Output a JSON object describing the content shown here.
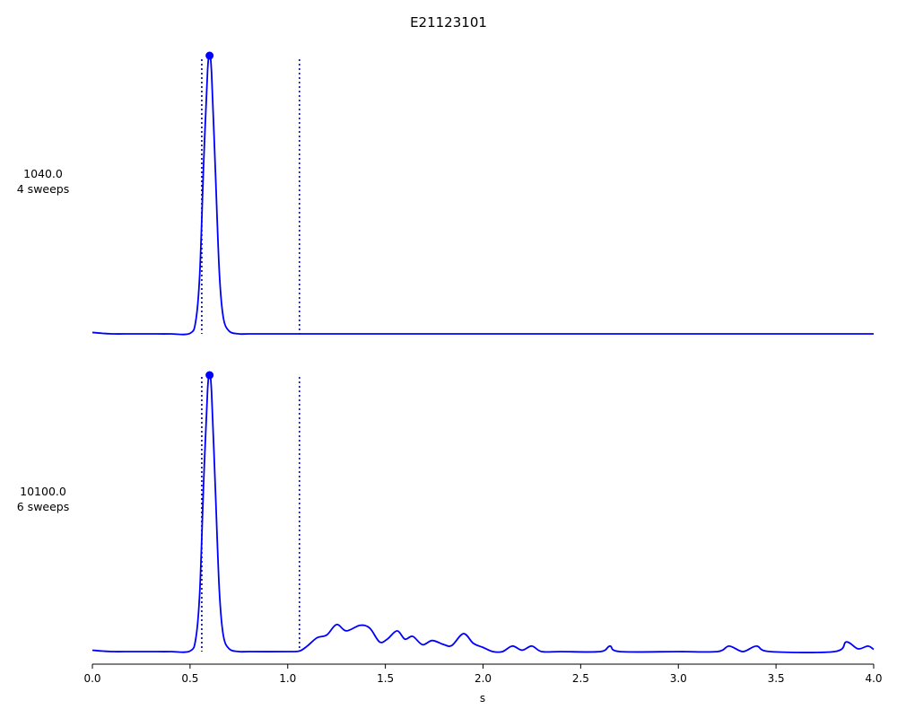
{
  "chart_data": {
    "type": "line",
    "title": "E21123101",
    "xlabel": "s",
    "xlim": [
      0.0,
      4.0
    ],
    "xticks": [
      "0.0",
      "0.5",
      "1.0",
      "1.5",
      "2.0",
      "2.5",
      "3.0",
      "3.5",
      "4.0"
    ],
    "color": "#0000ff",
    "panels": [
      {
        "label_line1": "1040.0",
        "label_line2": "4 sweeps",
        "ylim": [
          0,
          1
        ],
        "markers": [
          0.56,
          1.06
        ],
        "peak": {
          "x": 0.6,
          "y": 1.0
        },
        "x": [
          0.0,
          0.05,
          0.1,
          0.2,
          0.3,
          0.4,
          0.5,
          0.53,
          0.55,
          0.57,
          0.59,
          0.6,
          0.61,
          0.63,
          0.65,
          0.67,
          0.7,
          0.75,
          0.8,
          1.0,
          1.5,
          2.0,
          2.5,
          3.0,
          3.5,
          4.0
        ],
        "y": [
          0.005,
          0.002,
          0.0,
          0.0,
          0.0,
          0.0,
          0.002,
          0.05,
          0.22,
          0.62,
          0.95,
          1.0,
          0.94,
          0.58,
          0.22,
          0.06,
          0.01,
          0.0,
          0.0,
          0.0,
          0.0,
          0.0,
          0.0,
          0.0,
          0.0,
          0.0
        ]
      },
      {
        "label_line1": "10100.0",
        "label_line2": "6 sweeps",
        "ylim": [
          0,
          1
        ],
        "markers": [
          0.56,
          1.06
        ],
        "peak": {
          "x": 0.6,
          "y": 1.0
        },
        "x": [
          0.0,
          0.05,
          0.1,
          0.2,
          0.3,
          0.4,
          0.5,
          0.53,
          0.55,
          0.57,
          0.59,
          0.6,
          0.61,
          0.63,
          0.65,
          0.67,
          0.7,
          0.75,
          0.8,
          1.0,
          1.06,
          1.1,
          1.15,
          1.2,
          1.25,
          1.3,
          1.37,
          1.42,
          1.47,
          1.51,
          1.56,
          1.6,
          1.64,
          1.69,
          1.74,
          1.8,
          1.84,
          1.9,
          1.95,
          2.0,
          2.05,
          2.1,
          2.15,
          2.2,
          2.25,
          2.3,
          2.4,
          2.6,
          2.65,
          2.7,
          3.0,
          3.2,
          3.26,
          3.33,
          3.4,
          3.47,
          3.8,
          3.86,
          3.92,
          3.97,
          4.0
        ],
        "y": [
          0.005,
          0.002,
          0.0,
          0.0,
          0.0,
          0.0,
          0.002,
          0.05,
          0.22,
          0.62,
          0.95,
          1.0,
          0.94,
          0.58,
          0.22,
          0.06,
          0.01,
          0.0,
          0.0,
          0.0,
          0.002,
          0.02,
          0.05,
          0.06,
          0.098,
          0.075,
          0.095,
          0.085,
          0.035,
          0.045,
          0.075,
          0.045,
          0.055,
          0.025,
          0.04,
          0.025,
          0.022,
          0.065,
          0.03,
          0.015,
          0.0,
          0.0,
          0.02,
          0.005,
          0.02,
          0.0,
          0.0,
          0.0,
          0.02,
          0.0,
          0.0,
          0.0,
          0.02,
          0.0,
          0.02,
          0.0,
          0.0,
          0.035,
          0.01,
          0.02,
          0.008
        ]
      }
    ]
  }
}
